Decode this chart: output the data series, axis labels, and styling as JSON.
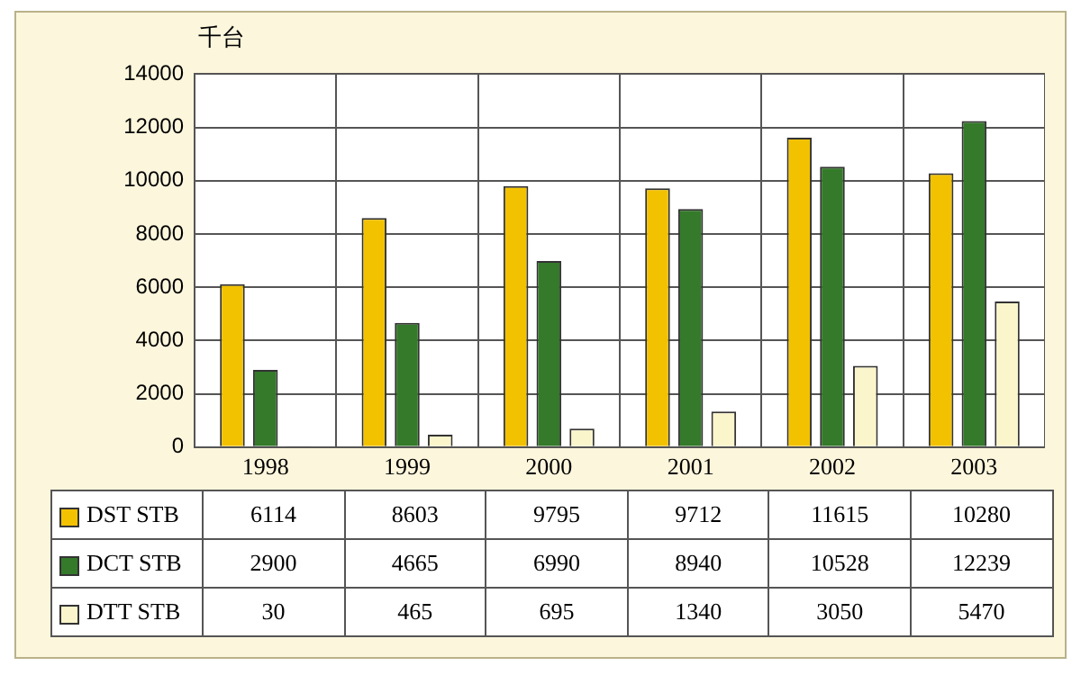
{
  "chart_data": {
    "type": "bar",
    "ylabel": "千台",
    "categories": [
      "1998",
      "1999",
      "2000",
      "2001",
      "2002",
      "2003"
    ],
    "series": [
      {
        "name": "DST STB",
        "color": "#f2c200",
        "values": [
          6114,
          8603,
          9795,
          9712,
          11615,
          10280
        ]
      },
      {
        "name": "DCT STB",
        "color": "#347a2a",
        "values": [
          2900,
          4665,
          6990,
          8940,
          10528,
          12239
        ]
      },
      {
        "name": "DTT STB",
        "color": "#fbf5cc",
        "values": [
          30,
          465,
          695,
          1340,
          3050,
          5470
        ]
      }
    ],
    "ylim": [
      0,
      14000
    ],
    "yticks": [
      0,
      2000,
      4000,
      6000,
      8000,
      10000,
      12000,
      14000
    ],
    "grid": true,
    "legend": "bottom",
    "data_labels": true
  }
}
